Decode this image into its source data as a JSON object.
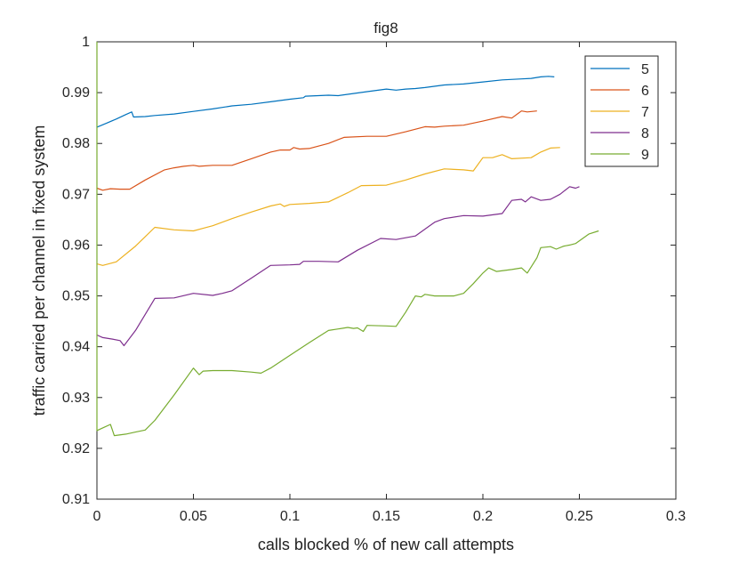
{
  "chart_data": {
    "type": "line",
    "title": "fig8",
    "xlabel": "calls blocked % of new call attempts",
    "ylabel": "traffic carried per channel in fixed system",
    "xlim": [
      0,
      0.3
    ],
    "ylim": [
      0.91,
      1.0
    ],
    "xticks": [
      0,
      0.05,
      0.1,
      0.15,
      0.2,
      0.25,
      0.3
    ],
    "xtick_labels": [
      "0",
      "0.05",
      "0.1",
      "0.15",
      "0.2",
      "0.25",
      "0.3"
    ],
    "yticks": [
      0.91,
      0.92,
      0.93,
      0.94,
      0.95,
      0.96,
      0.97,
      0.98,
      0.99,
      1.0
    ],
    "ytick_labels": [
      "0.91",
      "0.92",
      "0.93",
      "0.94",
      "0.95",
      "0.96",
      "0.97",
      "0.98",
      "0.99",
      "1"
    ],
    "grid": false,
    "legend_position": "top-right",
    "series": [
      {
        "name": "5",
        "color": "#0072BD",
        "points": [
          [
            0,
            0.9832
          ],
          [
            0.005,
            0.984
          ],
          [
            0.01,
            0.9848
          ],
          [
            0.015,
            0.9857
          ],
          [
            0.018,
            0.9862
          ],
          [
            0.019,
            0.9852
          ],
          [
            0.025,
            0.9853
          ],
          [
            0.03,
            0.9855
          ],
          [
            0.04,
            0.9858
          ],
          [
            0.05,
            0.9863
          ],
          [
            0.06,
            0.9868
          ],
          [
            0.07,
            0.9874
          ],
          [
            0.08,
            0.9877
          ],
          [
            0.09,
            0.9882
          ],
          [
            0.1,
            0.9887
          ],
          [
            0.107,
            0.989
          ],
          [
            0.108,
            0.9893
          ],
          [
            0.12,
            0.9895
          ],
          [
            0.125,
            0.9894
          ],
          [
            0.14,
            0.9902
          ],
          [
            0.15,
            0.9907
          ],
          [
            0.155,
            0.9905
          ],
          [
            0.16,
            0.9907
          ],
          [
            0.165,
            0.9908
          ],
          [
            0.17,
            0.991
          ],
          [
            0.18,
            0.9915
          ],
          [
            0.19,
            0.9917
          ],
          [
            0.2,
            0.9921
          ],
          [
            0.21,
            0.9925
          ],
          [
            0.22,
            0.9927
          ],
          [
            0.225,
            0.9928
          ],
          [
            0.23,
            0.9931
          ],
          [
            0.234,
            0.9932
          ],
          [
            0.237,
            0.9931
          ]
        ]
      },
      {
        "name": "6",
        "color": "#D95319",
        "points": [
          [
            0,
            0.9712
          ],
          [
            0.003,
            0.9708
          ],
          [
            0.007,
            0.9711
          ],
          [
            0.012,
            0.971
          ],
          [
            0.017,
            0.971
          ],
          [
            0.025,
            0.9728
          ],
          [
            0.035,
            0.9748
          ],
          [
            0.04,
            0.9752
          ],
          [
            0.045,
            0.9755
          ],
          [
            0.05,
            0.9757
          ],
          [
            0.053,
            0.9755
          ],
          [
            0.06,
            0.9757
          ],
          [
            0.07,
            0.9757
          ],
          [
            0.08,
            0.977
          ],
          [
            0.09,
            0.9783
          ],
          [
            0.095,
            0.9787
          ],
          [
            0.1,
            0.9787
          ],
          [
            0.102,
            0.9792
          ],
          [
            0.105,
            0.9789
          ],
          [
            0.11,
            0.979
          ],
          [
            0.12,
            0.98
          ],
          [
            0.128,
            0.9812
          ],
          [
            0.14,
            0.9814
          ],
          [
            0.15,
            0.9814
          ],
          [
            0.16,
            0.9823
          ],
          [
            0.17,
            0.9833
          ],
          [
            0.175,
            0.9832
          ],
          [
            0.18,
            0.9834
          ],
          [
            0.19,
            0.9836
          ],
          [
            0.2,
            0.9844
          ],
          [
            0.21,
            0.9853
          ],
          [
            0.215,
            0.985
          ],
          [
            0.22,
            0.9864
          ],
          [
            0.223,
            0.9862
          ],
          [
            0.228,
            0.9864
          ]
        ]
      },
      {
        "name": "7",
        "color": "#EDB120",
        "points": [
          [
            0,
            0.9563
          ],
          [
            0.003,
            0.956
          ],
          [
            0.008,
            0.9565
          ],
          [
            0.01,
            0.9567
          ],
          [
            0.02,
            0.9598
          ],
          [
            0.03,
            0.9635
          ],
          [
            0.04,
            0.963
          ],
          [
            0.05,
            0.9628
          ],
          [
            0.055,
            0.9633
          ],
          [
            0.06,
            0.9638
          ],
          [
            0.07,
            0.9652
          ],
          [
            0.08,
            0.9665
          ],
          [
            0.09,
            0.9677
          ],
          [
            0.095,
            0.9681
          ],
          [
            0.097,
            0.9676
          ],
          [
            0.1,
            0.968
          ],
          [
            0.11,
            0.9682
          ],
          [
            0.12,
            0.9685
          ],
          [
            0.13,
            0.9703
          ],
          [
            0.137,
            0.9717
          ],
          [
            0.15,
            0.9718
          ],
          [
            0.16,
            0.9728
          ],
          [
            0.17,
            0.974
          ],
          [
            0.18,
            0.975
          ],
          [
            0.19,
            0.9748
          ],
          [
            0.195,
            0.9746
          ],
          [
            0.2,
            0.9772
          ],
          [
            0.205,
            0.9772
          ],
          [
            0.21,
            0.9778
          ],
          [
            0.215,
            0.977
          ],
          [
            0.225,
            0.9772
          ],
          [
            0.23,
            0.9783
          ],
          [
            0.235,
            0.9791
          ],
          [
            0.24,
            0.9792
          ]
        ]
      },
      {
        "name": "8",
        "color": "#7E2F8E",
        "points": [
          [
            0,
            0.9423
          ],
          [
            0.003,
            0.9418
          ],
          [
            0.008,
            0.9415
          ],
          [
            0.012,
            0.9412
          ],
          [
            0.014,
            0.9402
          ],
          [
            0.02,
            0.9432
          ],
          [
            0.03,
            0.9495
          ],
          [
            0.04,
            0.9496
          ],
          [
            0.05,
            0.9505
          ],
          [
            0.06,
            0.9501
          ],
          [
            0.065,
            0.9505
          ],
          [
            0.07,
            0.951
          ],
          [
            0.08,
            0.9535
          ],
          [
            0.09,
            0.956
          ],
          [
            0.1,
            0.9561
          ],
          [
            0.105,
            0.9562
          ],
          [
            0.107,
            0.9568
          ],
          [
            0.115,
            0.9568
          ],
          [
            0.125,
            0.9567
          ],
          [
            0.135,
            0.959
          ],
          [
            0.147,
            0.9613
          ],
          [
            0.155,
            0.9611
          ],
          [
            0.165,
            0.9618
          ],
          [
            0.175,
            0.9645
          ],
          [
            0.18,
            0.9652
          ],
          [
            0.19,
            0.9658
          ],
          [
            0.2,
            0.9657
          ],
          [
            0.21,
            0.9662
          ],
          [
            0.215,
            0.9688
          ],
          [
            0.22,
            0.969
          ],
          [
            0.222,
            0.9685
          ],
          [
            0.225,
            0.9695
          ],
          [
            0.23,
            0.9688
          ],
          [
            0.235,
            0.969
          ],
          [
            0.24,
            0.97
          ],
          [
            0.245,
            0.9715
          ],
          [
            0.248,
            0.9712
          ],
          [
            0.25,
            0.9715
          ]
        ]
      },
      {
        "name": "9",
        "color": "#77AC30",
        "points": [
          [
            0,
            1.0
          ],
          [
            0,
            0.9235
          ],
          [
            0.004,
            0.9242
          ],
          [
            0.007,
            0.9247
          ],
          [
            0.008,
            0.9236
          ],
          [
            0.009,
            0.9225
          ],
          [
            0.015,
            0.9228
          ],
          [
            0.02,
            0.9232
          ],
          [
            0.025,
            0.9236
          ],
          [
            0.03,
            0.9255
          ],
          [
            0.04,
            0.9305
          ],
          [
            0.05,
            0.9358
          ],
          [
            0.053,
            0.9345
          ],
          [
            0.055,
            0.9352
          ],
          [
            0.06,
            0.9353
          ],
          [
            0.07,
            0.9353
          ],
          [
            0.08,
            0.935
          ],
          [
            0.085,
            0.9348
          ],
          [
            0.09,
            0.9358
          ],
          [
            0.1,
            0.9383
          ],
          [
            0.11,
            0.9408
          ],
          [
            0.12,
            0.9432
          ],
          [
            0.13,
            0.9438
          ],
          [
            0.133,
            0.9436
          ],
          [
            0.135,
            0.9437
          ],
          [
            0.138,
            0.943
          ],
          [
            0.14,
            0.9442
          ],
          [
            0.15,
            0.9441
          ],
          [
            0.155,
            0.944
          ],
          [
            0.16,
            0.9468
          ],
          [
            0.165,
            0.95
          ],
          [
            0.168,
            0.9498
          ],
          [
            0.17,
            0.9503
          ],
          [
            0.175,
            0.95
          ],
          [
            0.185,
            0.95
          ],
          [
            0.19,
            0.9505
          ],
          [
            0.195,
            0.9524
          ],
          [
            0.2,
            0.9545
          ],
          [
            0.203,
            0.9555
          ],
          [
            0.207,
            0.9548
          ],
          [
            0.215,
            0.9552
          ],
          [
            0.22,
            0.9555
          ],
          [
            0.223,
            0.9545
          ],
          [
            0.228,
            0.9575
          ],
          [
            0.23,
            0.9595
          ],
          [
            0.235,
            0.9597
          ],
          [
            0.238,
            0.9592
          ],
          [
            0.242,
            0.9598
          ],
          [
            0.245,
            0.96
          ],
          [
            0.248,
            0.9603
          ],
          [
            0.255,
            0.9622
          ],
          [
            0.26,
            0.9628
          ]
        ]
      }
    ]
  }
}
